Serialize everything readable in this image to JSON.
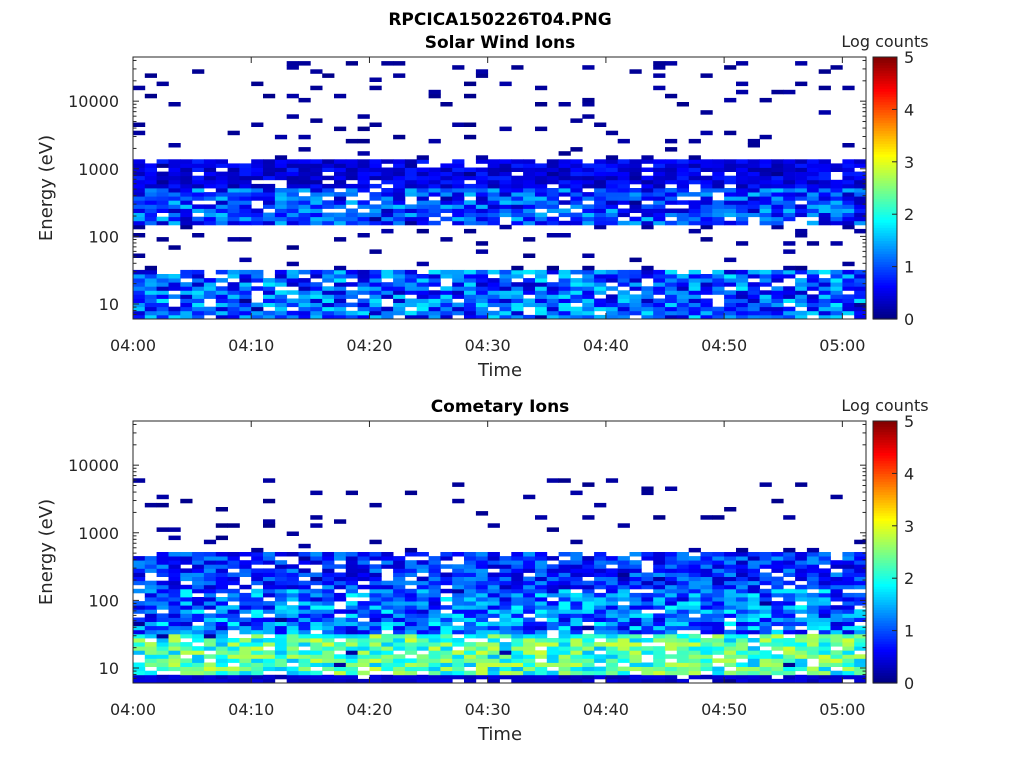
{
  "figure_title": "RPCICA150226T04.PNG",
  "colors": {
    "colormap": "jet",
    "empty_cell": "#ffffff",
    "axis": "#262626"
  },
  "chart_data": [
    {
      "type": "heatmap",
      "title": "Solar Wind Ions",
      "xlabel": "Time",
      "ylabel": "Energy (eV)",
      "x_range": [
        "04:00",
        "05:02"
      ],
      "x_ticks": [
        "04:00",
        "04:10",
        "04:20",
        "04:30",
        "04:40",
        "04:50",
        "05:00"
      ],
      "y_scale": "log",
      "y_range": [
        6,
        45000
      ],
      "y_tick_labels": [
        "10",
        "100",
        "1000",
        "10000"
      ],
      "colorbar": {
        "label": "Log counts",
        "range": [
          0,
          5
        ],
        "tick_labels": [
          "0",
          "1",
          "2",
          "3",
          "4",
          "5"
        ]
      },
      "bands": [
        {
          "e_low": 6,
          "e_high": 30,
          "level_min": 0.3,
          "level_max": 1.8
        },
        {
          "e_low": 150,
          "e_high": 500,
          "level_min": 0.3,
          "level_max": 1.6
        },
        {
          "e_low": 500,
          "e_high": 1300,
          "level_min": 0.2,
          "level_max": 0.8
        }
      ],
      "scatter_top_energy": 40000,
      "seed": 11
    },
    {
      "type": "heatmap",
      "title": "Cometary Ions",
      "xlabel": "Time",
      "ylabel": "Energy (eV)",
      "x_range": [
        "04:00",
        "05:02"
      ],
      "x_ticks": [
        "04:00",
        "04:10",
        "04:20",
        "04:30",
        "04:40",
        "04:50",
        "05:00"
      ],
      "y_scale": "log",
      "y_range": [
        6,
        45000
      ],
      "y_tick_labels": [
        "10",
        "100",
        "1000",
        "10000"
      ],
      "colorbar": {
        "label": "Log counts",
        "range": [
          0,
          5
        ],
        "tick_labels": [
          "0",
          "1",
          "2",
          "3",
          "4",
          "5"
        ]
      },
      "bands": [
        {
          "e_low": 6,
          "e_high": 8,
          "level_min": 0.2,
          "level_max": 0.5
        },
        {
          "e_low": 8,
          "e_high": 30,
          "level_min": 1.5,
          "level_max": 2.9
        },
        {
          "e_low": 30,
          "e_high": 150,
          "level_min": 0.4,
          "level_max": 1.9
        },
        {
          "e_low": 150,
          "e_high": 550,
          "level_min": 0.3,
          "level_max": 1.4
        }
      ],
      "scatter_top_energy": 6000,
      "seed": 29
    }
  ]
}
